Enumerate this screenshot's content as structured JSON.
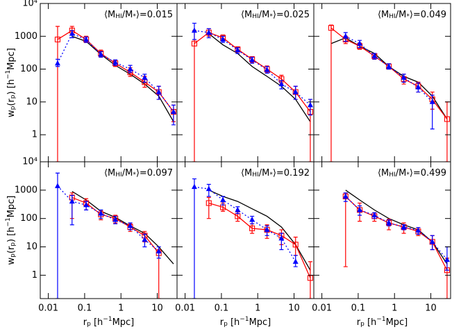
{
  "ylabel": [
    "w",
    "p",
    "(r",
    "p",
    ") [h",
    "−1",
    "Mpc]"
  ],
  "xlabel": [
    "r",
    "p",
    " [h",
    "−1",
    "Mpc]"
  ],
  "chart_data": [
    {
      "type": "line",
      "title": [
        "⟨M",
        "HI",
        "/M",
        "*",
        "⟩=0.015"
      ],
      "xscale": "log",
      "yscale": "log",
      "xlim": [
        0.006,
        35
      ],
      "ylim": [
        0.15,
        10000
      ],
      "xticks": [
        0.01,
        0.1,
        1,
        10
      ],
      "yticks": [
        1,
        10,
        100,
        1000,
        {
          "value": 10000,
          "label": "10⁴"
        }
      ],
      "x": [
        0.018,
        0.045,
        0.11,
        0.28,
        0.7,
        1.8,
        4.5,
        11,
        28
      ],
      "series": [
        {
          "color": "#000000",
          "line": "solid",
          "values": [
            null,
            1000,
            700,
            280,
            130,
            70,
            35,
            15,
            2.5
          ]
        },
        {
          "color": "#ff0000",
          "line": "solid",
          "marker": "square",
          "values": [
            800,
            1500,
            800,
            300,
            150,
            80,
            40,
            20,
            5
          ],
          "ylow": [
            0.15,
            1100,
            650,
            240,
            120,
            60,
            28,
            12,
            2.5
          ],
          "yhigh": [
            2000,
            2000,
            1000,
            380,
            190,
            110,
            60,
            30,
            8
          ]
        },
        {
          "color": "#0000ff",
          "line": "dotted",
          "marker": "triangle",
          "values": [
            150,
            1200,
            800,
            280,
            160,
            100,
            55,
            20,
            5
          ],
          "ylow": [
            120,
            900,
            650,
            230,
            130,
            80,
            40,
            12,
            2
          ],
          "yhigh": [
            200,
            1500,
            950,
            340,
            190,
            130,
            70,
            30,
            8
          ]
        }
      ]
    },
    {
      "type": "line",
      "title": [
        "⟨M",
        "HI",
        "/M",
        "*",
        "⟩=0.025"
      ],
      "xscale": "log",
      "yscale": "log",
      "xlim": [
        0.006,
        35
      ],
      "ylim": [
        0.15,
        10000
      ],
      "xticks": [
        0.01,
        0.1,
        1,
        10
      ],
      "yticks": [
        1,
        10,
        100,
        1000,
        {
          "value": 10000,
          "label": "10⁴"
        }
      ],
      "x": [
        0.018,
        0.045,
        0.11,
        0.28,
        0.7,
        1.8,
        4.5,
        11,
        28
      ],
      "series": [
        {
          "color": "#000000",
          "line": "solid",
          "values": [
            null,
            1200,
            550,
            300,
            120,
            60,
            30,
            12,
            2.5
          ]
        },
        {
          "color": "#ff0000",
          "line": "solid",
          "marker": "square",
          "values": [
            600,
            1300,
            900,
            400,
            200,
            100,
            50,
            20,
            5
          ],
          "ylow": [
            0.15,
            1000,
            750,
            330,
            160,
            80,
            38,
            12,
            0.15
          ],
          "yhigh": [
            1500,
            1700,
            1100,
            480,
            240,
            125,
            65,
            30,
            12
          ]
        },
        {
          "color": "#0000ff",
          "line": "dotted",
          "marker": "triangle",
          "values": [
            1500,
            1300,
            800,
            380,
            190,
            95,
            35,
            20,
            8
          ],
          "ylow": [
            800,
            900,
            650,
            300,
            150,
            75,
            25,
            12,
            4
          ],
          "yhigh": [
            2500,
            1700,
            1000,
            450,
            230,
            120,
            45,
            30,
            12
          ]
        }
      ]
    },
    {
      "type": "line",
      "title": [
        "⟨M",
        "HI",
        "/M",
        "*",
        "⟩=0.049"
      ],
      "xscale": "log",
      "yscale": "log",
      "xlim": [
        0.006,
        35
      ],
      "ylim": [
        0.15,
        10000
      ],
      "xticks": [
        0.01,
        0.1,
        1,
        10
      ],
      "yticks": [
        1,
        10,
        100,
        1000,
        {
          "value": 10000,
          "label": "10⁴"
        }
      ],
      "x": [
        0.018,
        0.045,
        0.11,
        0.28,
        0.7,
        1.8,
        4.5,
        11,
        28
      ],
      "series": [
        {
          "color": "#000000",
          "line": "solid",
          "values": [
            600,
            900,
            500,
            300,
            120,
            60,
            40,
            15,
            3
          ]
        },
        {
          "color": "#ff0000",
          "line": "solid",
          "marker": "square",
          "values": [
            1800,
            800,
            500,
            250,
            120,
            50,
            30,
            12,
            3
          ],
          "ylow": [
            0.15,
            600,
            400,
            200,
            100,
            35,
            20,
            6,
            0.15
          ],
          "yhigh": [
            2200,
            1000,
            620,
            300,
            145,
            70,
            40,
            20,
            10
          ]
        },
        {
          "color": "#0000ff",
          "line": "dotted",
          "marker": "triangle",
          "values": [
            null,
            1000,
            600,
            250,
            120,
            55,
            28,
            10,
            null
          ],
          "ylow": [
            null,
            700,
            450,
            200,
            100,
            40,
            20,
            1.5,
            null
          ],
          "yhigh": [
            null,
            1300,
            750,
            300,
            145,
            70,
            38,
            16,
            null
          ]
        }
      ]
    },
    {
      "type": "line",
      "title": [
        "⟨M",
        "HI",
        "/M",
        "*",
        "⟩=0.097"
      ],
      "xscale": "log",
      "yscale": "log",
      "xlim": [
        0.006,
        35
      ],
      "ylim": [
        0.15,
        10000
      ],
      "xticks": [
        0.01,
        0.1,
        1,
        10
      ],
      "yticks": [
        1,
        10,
        100,
        1000,
        {
          "value": 10000,
          "label": "10⁴"
        }
      ],
      "x": [
        0.018,
        0.045,
        0.11,
        0.28,
        0.7,
        1.8,
        4.5,
        11,
        28
      ],
      "series": [
        {
          "color": "#000000",
          "line": "solid",
          "values": [
            null,
            900,
            450,
            180,
            110,
            55,
            30,
            10,
            2.5
          ]
        },
        {
          "color": "#ff0000",
          "line": "solid",
          "marker": "square",
          "values": [
            null,
            550,
            350,
            140,
            100,
            50,
            25,
            6,
            null
          ],
          "ylow": [
            null,
            100,
            200,
            90,
            70,
            35,
            15,
            0.15,
            null
          ],
          "yhigh": [
            null,
            800,
            500,
            190,
            130,
            65,
            35,
            8,
            null
          ]
        },
        {
          "color": "#0000ff",
          "line": "dotted",
          "marker": "triangle",
          "values": [
            1400,
            400,
            300,
            150,
            90,
            55,
            18,
            7,
            null
          ],
          "ylow": [
            0.15,
            60,
            200,
            100,
            65,
            40,
            10,
            4,
            null
          ],
          "yhigh": [
            4000,
            650,
            400,
            200,
            120,
            70,
            28,
            10,
            null
          ]
        }
      ]
    },
    {
      "type": "line",
      "title": [
        "⟨M",
        "HI",
        "/M",
        "*",
        "⟩=0.192"
      ],
      "xscale": "log",
      "yscale": "log",
      "xlim": [
        0.006,
        35
      ],
      "ylim": [
        0.15,
        10000
      ],
      "xticks": [
        0.01,
        0.1,
        1,
        10
      ],
      "yticks": [
        1,
        10,
        100,
        1000,
        {
          "value": 10000,
          "label": "10⁴"
        }
      ],
      "x": [
        0.018,
        0.045,
        0.11,
        0.28,
        0.7,
        1.8,
        4.5,
        11,
        28
      ],
      "series": [
        {
          "color": "#000000",
          "line": "solid",
          "values": [
            null,
            1000,
            600,
            400,
            220,
            120,
            50,
            12,
            1.5
          ]
        },
        {
          "color": "#ff0000",
          "line": "solid",
          "marker": "square",
          "values": [
            null,
            350,
            250,
            120,
            45,
            40,
            25,
            12,
            0.8
          ],
          "ylow": [
            null,
            100,
            180,
            80,
            30,
            20,
            12,
            5,
            0.15
          ],
          "yhigh": [
            null,
            550,
            350,
            170,
            65,
            60,
            40,
            22,
            3
          ]
        },
        {
          "color": "#0000ff",
          "line": "dotted",
          "marker": "triangle",
          "values": [
            1300,
            1100,
            450,
            200,
            90,
            40,
            20,
            3,
            null
          ],
          "ylow": [
            0.15,
            600,
            300,
            150,
            65,
            25,
            8,
            2,
            null
          ],
          "yhigh": [
            2500,
            1600,
            600,
            260,
            120,
            55,
            30,
            5,
            null
          ]
        }
      ]
    },
    {
      "type": "line",
      "title": [
        "⟨M",
        "HI",
        "/M",
        "*",
        "⟩=0.499"
      ],
      "xscale": "log",
      "yscale": "log",
      "xlim": [
        0.006,
        35
      ],
      "ylim": [
        0.15,
        10000
      ],
      "xticks": [
        0.01,
        0.1,
        1,
        10
      ],
      "yticks": [
        1,
        10,
        100,
        1000,
        {
          "value": 10000,
          "label": "10⁴"
        }
      ],
      "x": [
        0.018,
        0.045,
        0.11,
        0.28,
        0.7,
        1.8,
        4.5,
        11,
        28
      ],
      "series": [
        {
          "color": "#000000",
          "line": "solid",
          "values": [
            null,
            1000,
            450,
            200,
            100,
            60,
            40,
            15,
            2.5
          ]
        },
        {
          "color": "#ff0000",
          "line": "solid",
          "marker": "square",
          "values": [
            null,
            600,
            200,
            120,
            70,
            50,
            35,
            15,
            1.5
          ],
          "ylow": [
            null,
            2,
            80,
            80,
            40,
            30,
            25,
            8,
            0.15
          ],
          "yhigh": [
            null,
            800,
            350,
            160,
            95,
            70,
            48,
            25,
            4
          ]
        },
        {
          "color": "#0000ff",
          "line": "dotted",
          "marker": "triangle",
          "values": [
            null,
            600,
            200,
            130,
            70,
            50,
            38,
            15,
            3.5
          ],
          "ylow": [
            null,
            400,
            130,
            100,
            55,
            40,
            28,
            8,
            1.5
          ],
          "yhigh": [
            null,
            800,
            280,
            160,
            90,
            60,
            48,
            25,
            10
          ]
        }
      ]
    }
  ]
}
